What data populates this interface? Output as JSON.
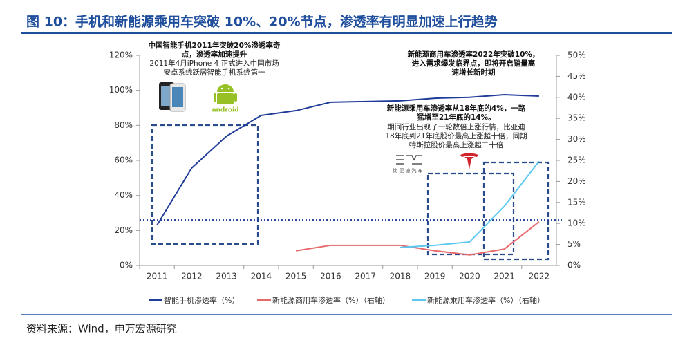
{
  "chart_data": {
    "type": "line",
    "title": "图 10：手机和新能源乘用车突破 10%、20%节点，渗透率有明显加速上行趋势",
    "source": "资料来源：Wind，申万宏源研究",
    "categories": [
      "2011",
      "2012",
      "2013",
      "2014",
      "2015",
      "2016",
      "2017",
      "2018",
      "2019",
      "2020",
      "2021",
      "2022"
    ],
    "series": [
      {
        "name": "智能手机渗透率（%）",
        "color": "#1f3c99",
        "values": [
          23,
          55.7,
          73.8,
          85.7,
          88.4,
          93.2,
          93.6,
          94,
          95.5,
          96,
          97.5,
          96.7
        ]
      },
      {
        "name": "新能源商用车渗透率（%）（右轴）",
        "color": "#e8696b",
        "axis": "y2",
        "values": [
          null,
          null,
          null,
          null,
          3.5,
          4.8,
          4.8,
          4.8,
          3.5,
          2.5,
          3.9,
          10.4
        ]
      },
      {
        "name": "新能源乘用车渗透率（%）（右轴）",
        "color": "#5cc8f0",
        "axis": "y2",
        "values": [
          null,
          null,
          null,
          null,
          null,
          null,
          null,
          4.3,
          4.8,
          5.6,
          14.1,
          24.8
        ]
      }
    ],
    "ylim": [
      0,
      120
    ],
    "yticks": [
      {
        "value": 0,
        "label": "0%"
      },
      {
        "value": 20,
        "label": "20%"
      },
      {
        "value": 40,
        "label": "40%"
      },
      {
        "value": 60,
        "label": "60%"
      },
      {
        "value": 80,
        "label": "80%"
      },
      {
        "value": 100,
        "label": "100%"
      },
      {
        "value": 120,
        "label": "120%"
      }
    ],
    "y2lim": [
      0,
      50
    ],
    "y2ticks": [
      {
        "value": 0,
        "label": "0%"
      },
      {
        "value": 5,
        "label": "5%"
      },
      {
        "value": 10,
        "label": "10%"
      },
      {
        "value": 15,
        "label": "15%"
      },
      {
        "value": 20,
        "label": "20%"
      },
      {
        "value": 25,
        "label": "25%"
      },
      {
        "value": 30,
        "label": "30%"
      },
      {
        "value": 35,
        "label": "35%"
      },
      {
        "value": 40,
        "label": "40%"
      },
      {
        "value": 45,
        "label": "45%"
      },
      {
        "value": 50,
        "label": "50%"
      }
    ],
    "reference_line": {
      "value": 26,
      "color": "#1f3c99"
    },
    "legend": "bottom",
    "annotations": [
      {
        "lines": [
          "中国智能手机2011年突破20%渗透率奇",
          "点，渗透率加速提升"
        ],
        "bold": true
      },
      {
        "lines": [
          "2011年4月iPhone 4 正式进入中国市场",
          "安卓系统跃居智能手机系统第一"
        ],
        "bold": false
      },
      {
        "lines": [
          "新能源商用车渗透率2022年突破10%，",
          "进入需求爆发临界点，即将开启销量高",
          "速增长新时期"
        ],
        "bold": true
      },
      {
        "lines": [
          "新能源乘用车渗透率从18年底的4%，一路",
          "猛增至21年底的14%。"
        ],
        "bold": true
      },
      {
        "lines": [
          "期间行业出现了一轮数倍上涨行情，比亚迪",
          "18年底到21年底股价最高上涨超十倍，同期",
          "特斯拉股价最高上涨超二十倍"
        ],
        "bold": false
      }
    ],
    "logos": [
      "android",
      "比亚迪汽车"
    ]
  }
}
